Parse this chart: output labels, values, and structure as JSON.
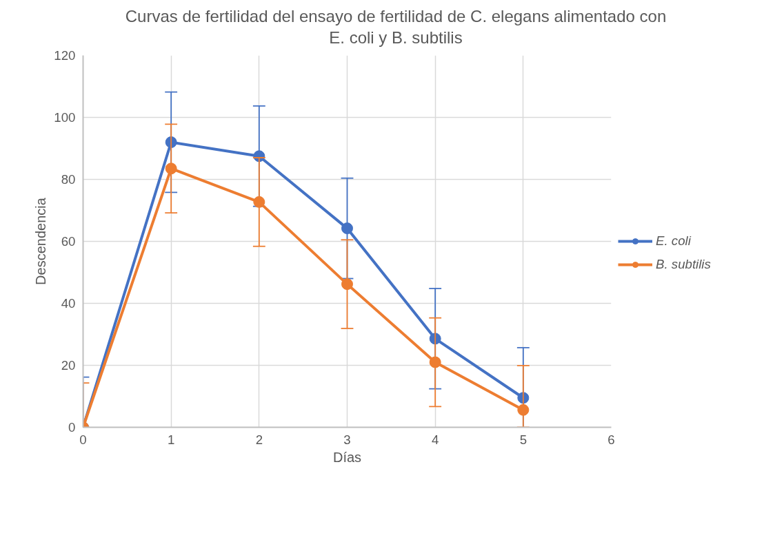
{
  "chart_data": {
    "type": "line",
    "title": "Curvas de fertilidad del ensayo de fertilidad de C. elegans alimentado con E. coli y B. subtilis",
    "xlabel": "Días",
    "ylabel": "Descendencia",
    "x": [
      0,
      1,
      2,
      3,
      4,
      5
    ],
    "series": [
      {
        "name": "E. coli",
        "color": "#4472c4",
        "values": [
          0,
          92,
          87.5,
          64.2,
          28.6,
          9.5
        ],
        "errors": [
          [
            0,
            16.2
          ],
          16.2,
          16.2,
          16.2,
          16.2,
          16.2
        ]
      },
      {
        "name": "B. subtilis",
        "color": "#ed7d31",
        "values": [
          0,
          83.5,
          72.7,
          46.2,
          21,
          5.6
        ],
        "errors": [
          [
            0,
            14.3
          ],
          14.3,
          14.3,
          14.3,
          14.3,
          [
            0,
            19.9
          ]
        ]
      }
    ],
    "xlim": [
      0,
      6
    ],
    "xticks": [
      0,
      1,
      2,
      3,
      4,
      5,
      6
    ],
    "ylim": [
      0,
      120
    ],
    "yticks": [
      0,
      20,
      40,
      60,
      80,
      100,
      120
    ],
    "grid": true,
    "legend": "right",
    "marker": "circle",
    "line_style": "solid"
  }
}
